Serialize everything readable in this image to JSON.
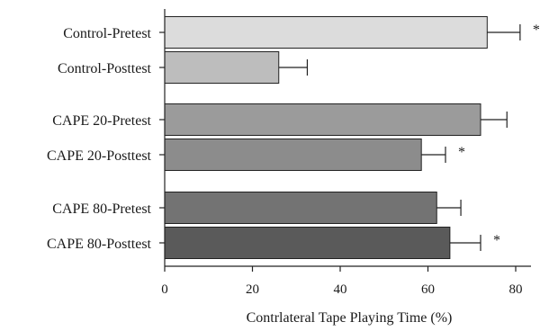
{
  "chart_data": {
    "type": "bar",
    "orientation": "horizontal",
    "categories": [
      "Control-Pretest",
      "Control-Posttest",
      "CAPE 20-Pretest",
      "CAPE 20-Posttest",
      "CAPE 80-Pretest",
      "CAPE 80-Posttest"
    ],
    "values": [
      73.5,
      26,
      72,
      58.5,
      62,
      65
    ],
    "errors": [
      7.5,
      6.5,
      6,
      5.5,
      5.5,
      7
    ],
    "significant": [
      true,
      false,
      false,
      true,
      false,
      true
    ],
    "significance_symbol": "*",
    "colors": [
      "#dcdcdc",
      "#bdbdbd",
      "#9b9b9b",
      "#8c8c8c",
      "#737373",
      "#5a5a5a"
    ],
    "groups": [
      [
        0,
        1
      ],
      [
        2,
        3
      ],
      [
        4,
        5
      ]
    ],
    "xlabel": "Contrlateral Tape Playing Time (%)",
    "ylabel": "",
    "xlim": [
      0,
      90
    ],
    "xticks": [
      0,
      20,
      40,
      60,
      80
    ],
    "grid": false
  }
}
